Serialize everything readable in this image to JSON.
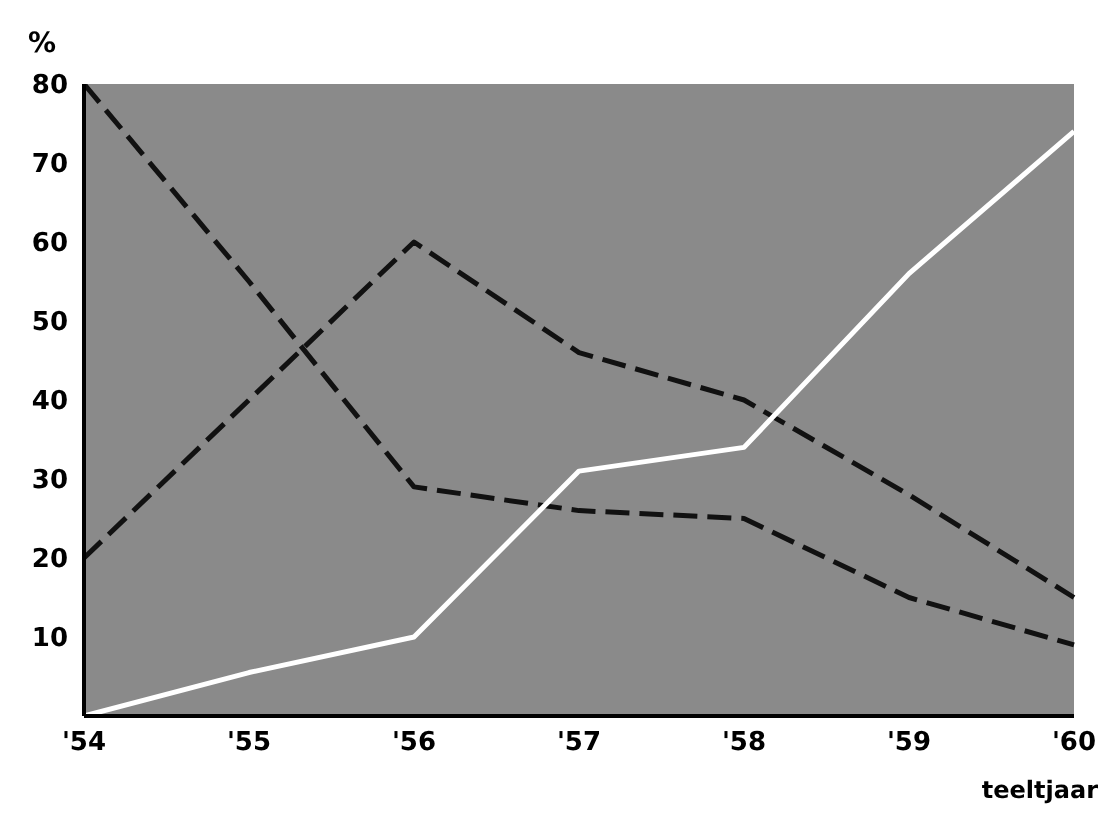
{
  "chart_data": {
    "type": "line",
    "ylabel": "%",
    "xlabel": "teeltjaar",
    "categories": [
      "'54",
      "'55",
      "'56",
      "'57",
      "'58",
      "'59",
      "'60"
    ],
    "series": [
      {
        "color": "#111111",
        "line_style": "dashed",
        "values": [
          80,
          55,
          29,
          26,
          25,
          15,
          9
        ]
      },
      {
        "color": "#111111",
        "line_style": "dashed",
        "values": [
          20,
          40,
          60,
          46,
          40,
          28,
          15
        ]
      },
      {
        "color": "#ffffff",
        "line_style": "solid",
        "values": [
          0,
          5.5,
          10,
          31,
          34,
          56,
          74
        ]
      }
    ],
    "ylim": [
      0,
      80
    ],
    "yticks": [
      10,
      20,
      30,
      40,
      50,
      60,
      70,
      80
    ],
    "grid": false,
    "legend": false,
    "marker": "none"
  }
}
